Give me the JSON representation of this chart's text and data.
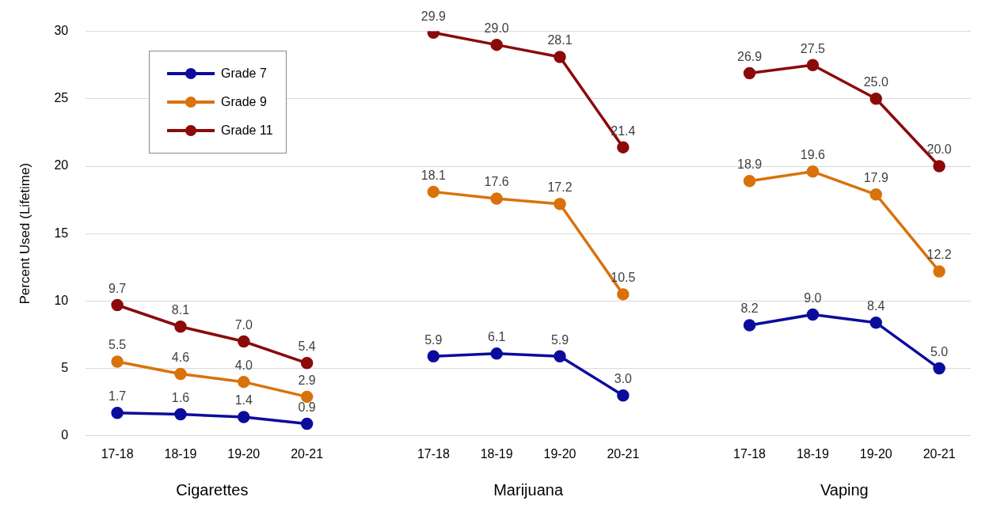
{
  "chart_data": {
    "type": "line",
    "ylabel": "Percent Used (Lifetime)",
    "categories": [
      "17-18",
      "18-19",
      "19-20",
      "20-21",
      null,
      "17-18",
      "18-19",
      "19-20",
      "20-21",
      null,
      "17-18",
      "18-19",
      "19-20",
      "20-21"
    ],
    "series": [
      {
        "name": "Grade 7",
        "color": "#0c0c9c",
        "values": [
          1.7,
          1.6,
          1.4,
          0.9,
          null,
          5.9,
          6.1,
          5.9,
          3.0,
          null,
          8.2,
          9.0,
          8.4,
          5.0
        ],
        "value_labels": [
          "1.7",
          "1.6",
          "1.4",
          "0.9",
          null,
          "5.9",
          "6.1",
          "5.9",
          "3.0",
          null,
          "8.2",
          "9.0",
          "8.4",
          "5.0"
        ]
      },
      {
        "name": "Grade 9",
        "color": "#d9720b",
        "values": [
          5.5,
          4.6,
          4.0,
          2.9,
          null,
          18.1,
          17.6,
          17.2,
          10.5,
          null,
          18.9,
          19.6,
          17.9,
          12.2
        ],
        "value_labels": [
          "5.5",
          "4.6",
          "4.0",
          "2.9",
          null,
          "18.1",
          "17.6",
          "17.2",
          "10.5",
          null,
          "18.9",
          "19.6",
          "17.9",
          "12.2"
        ]
      },
      {
        "name": "Grade 11",
        "color": "#8b0a0a",
        "values": [
          9.7,
          8.1,
          7.0,
          5.4,
          null,
          29.9,
          29.0,
          28.1,
          21.4,
          null,
          26.9,
          27.5,
          25.0,
          20.0
        ],
        "value_labels": [
          "9.7",
          "8.1",
          "7.0",
          "5.4",
          null,
          "29.9",
          "29.0",
          "28.1",
          "21.4",
          null,
          "26.9",
          "27.5",
          "25.0",
          "20.0"
        ]
      }
    ],
    "annotations": [
      "Cigarettes",
      "Marijuana",
      "Vaping"
    ],
    "ylim": [
      0,
      30
    ],
    "yticks": [
      0,
      5,
      10,
      15,
      20,
      25,
      30
    ],
    "grid": "y",
    "legend": "top left",
    "marker": "circle",
    "line_style": "solid"
  }
}
